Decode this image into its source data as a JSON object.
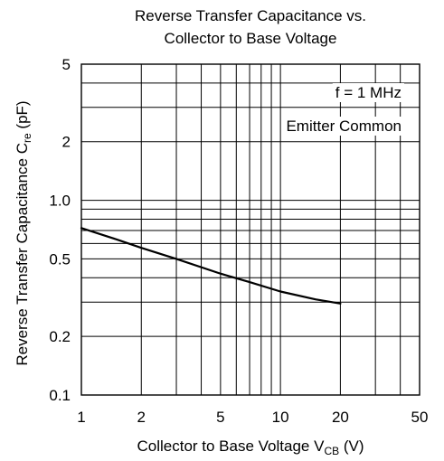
{
  "chart_data": {
    "type": "line",
    "title_line1": "Reverse Transfer Capacitance vs.",
    "title_line2": "Collector to Base Voltage",
    "xlabel_main": "Collector to Base Voltage  V",
    "xlabel_sub": "CB",
    "xlabel_unit": "  (V)",
    "ylabel_main": "Reverse Transfer Capacitance  C",
    "ylabel_sub": "re",
    "ylabel_unit": "  (pF)",
    "x_scale": "log",
    "y_scale": "log",
    "xlim": [
      1,
      50
    ],
    "ylim": [
      0.1,
      5
    ],
    "x_ticks": [
      1,
      2,
      5,
      10,
      20,
      50
    ],
    "x_tick_labels": [
      "1",
      "2",
      "5",
      "10",
      "20",
      "50"
    ],
    "y_ticks": [
      5,
      2,
      1.0,
      0.5,
      0.2,
      0.1
    ],
    "y_tick_labels": [
      "5",
      "2",
      "1.0",
      "0.5",
      "0.2",
      "0.1"
    ],
    "grid": true,
    "annotations": [
      "f = 1 MHz",
      "Emitter Common"
    ],
    "series": [
      {
        "x": [
          1,
          1.5,
          2,
          3,
          5,
          7,
          10,
          15,
          20
        ],
        "y": [
          0.72,
          0.63,
          0.57,
          0.5,
          0.42,
          0.38,
          0.34,
          0.31,
          0.295
        ]
      }
    ]
  }
}
